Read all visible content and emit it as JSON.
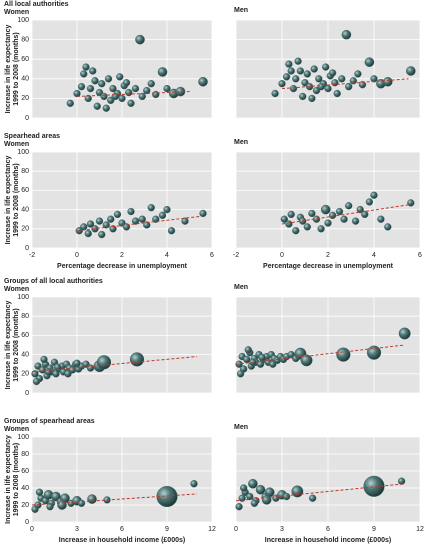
{
  "chart_data": [
    {
      "type": "scatter",
      "title": "All local authorities",
      "subtitle": "Women",
      "y_label": [
        "Increase in life expectancy",
        "1999 to 2008 (months)"
      ],
      "color": "#3f6666",
      "trend_color": "#c0392b",
      "x": [
        -0.3,
        0.0,
        0.2,
        0.3,
        0.4,
        0.5,
        0.6,
        0.8,
        0.9,
        1.0,
        1.1,
        1.2,
        1.4,
        1.5,
        1.6,
        1.8,
        1.9,
        2.0,
        2.1,
        2.3,
        2.4,
        2.6,
        2.8,
        2.9,
        3.1,
        3.3,
        3.5,
        3.8,
        4.0,
        4.3,
        4.6,
        5.6,
        0.7,
        1.3,
        1.7,
        2.2
      ],
      "y": [
        15,
        25,
        32,
        45,
        52,
        20,
        30,
        38,
        12,
        26,
        35,
        22,
        40,
        18,
        30,
        25,
        42,
        20,
        33,
        26,
        15,
        30,
        80,
        22,
        28,
        35,
        24,
        47,
        30,
        25,
        27,
        37,
        48,
        10,
        22,
        36
      ],
      "sizes": [
        3,
        3,
        3,
        3,
        3,
        3,
        3,
        3,
        3,
        3,
        3,
        3,
        3,
        3,
        3,
        3,
        3,
        3,
        3,
        3,
        3,
        3,
        4,
        3,
        3,
        3,
        3,
        4,
        3,
        4,
        4,
        4,
        3,
        3,
        3,
        3
      ],
      "trend": {
        "x": [
          0,
          5
        ],
        "y": [
          22,
          27
        ]
      },
      "xlim": [
        -2,
        6
      ],
      "xticks": [
        -2,
        0,
        2,
        4,
        6
      ],
      "ylim": [
        0,
        100
      ],
      "yticks": [
        0,
        20,
        40,
        60,
        80,
        100
      ],
      "xtick_labels": false,
      "ytick_labels": true,
      "grid": true
    },
    {
      "type": "scatter",
      "subtitle": "Men",
      "color": "#3f6666",
      "trend_color": "#c0392b",
      "x": [
        -0.3,
        0.0,
        0.2,
        0.3,
        0.4,
        0.5,
        0.6,
        0.8,
        0.9,
        1.0,
        1.1,
        1.2,
        1.4,
        1.5,
        1.6,
        1.8,
        1.9,
        2.0,
        2.1,
        2.3,
        2.4,
        2.6,
        2.8,
        2.9,
        3.1,
        3.3,
        3.5,
        3.8,
        4.0,
        4.3,
        4.6,
        5.6,
        0.7,
        1.3,
        1.7,
        2.2
      ],
      "y": [
        25,
        35,
        42,
        55,
        48,
        30,
        40,
        48,
        22,
        36,
        45,
        32,
        50,
        28,
        40,
        35,
        52,
        30,
        43,
        36,
        25,
        40,
        85,
        32,
        38,
        45,
        34,
        57,
        40,
        35,
        37,
        48,
        58,
        20,
        32,
        46
      ],
      "sizes": [
        3,
        3,
        3,
        3,
        3,
        3,
        3,
        3,
        3,
        3,
        3,
        3,
        3,
        3,
        3,
        3,
        3,
        3,
        3,
        3,
        3,
        3,
        4,
        3,
        3,
        3,
        3,
        4,
        3,
        4,
        4,
        4,
        3,
        3,
        3,
        3
      ],
      "trend": {
        "x": [
          0,
          5.5
        ],
        "y": [
          30,
          40
        ]
      },
      "xlim": [
        -2,
        6
      ],
      "xticks": [
        -2,
        0,
        2,
        4,
        6
      ],
      "ylim": [
        0,
        100
      ],
      "yticks": [
        0,
        20,
        40,
        60,
        80,
        100
      ],
      "xtick_labels": false,
      "ytick_labels": false,
      "grid": true
    },
    {
      "type": "scatter",
      "title": "Spearhead areas",
      "subtitle": "Women",
      "y_label": [
        "Increase in life expectancy",
        "1999 to 2008 (months)"
      ],
      "x_label": "Percentage decrease in unemployment",
      "color": "#3f6666",
      "trend_color": "#c0392b",
      "x": [
        0.1,
        0.3,
        0.5,
        0.6,
        0.8,
        1.0,
        1.1,
        1.3,
        1.5,
        1.6,
        1.8,
        2.0,
        2.2,
        2.4,
        2.6,
        2.9,
        3.1,
        3.3,
        3.5,
        3.8,
        4.0,
        4.2,
        4.8,
        5.6
      ],
      "y": [
        18,
        22,
        15,
        25,
        20,
        28,
        14,
        24,
        30,
        20,
        35,
        26,
        22,
        38,
        28,
        30,
        24,
        42,
        30,
        34,
        40,
        18,
        28,
        36
      ],
      "sizes": [
        3,
        3,
        3,
        3,
        3,
        3,
        3,
        3,
        3,
        3,
        3,
        3,
        3,
        3,
        3,
        3,
        3,
        3,
        3,
        3,
        3,
        3,
        3,
        3
      ],
      "trend": {
        "x": [
          0,
          5.5
        ],
        "y": [
          18,
          33
        ]
      },
      "xlim": [
        -2,
        6
      ],
      "xticks": [
        -2,
        0,
        2,
        4,
        6
      ],
      "ylim": [
        0,
        100
      ],
      "yticks": [
        0,
        20,
        40,
        60,
        80,
        100
      ],
      "xtick_labels": true,
      "ytick_labels": true,
      "grid": true
    },
    {
      "type": "scatter",
      "subtitle": "Men",
      "x_label": "Percentage decrease in unemployment",
      "color": "#3f6666",
      "trend_color": "#c0392b",
      "x": [
        0.1,
        0.3,
        0.4,
        0.6,
        0.8,
        0.9,
        1.1,
        1.3,
        1.5,
        1.7,
        1.9,
        2.0,
        2.2,
        2.5,
        2.7,
        2.9,
        3.2,
        3.4,
        3.6,
        3.8,
        4.0,
        4.3,
        4.6,
        5.6
      ],
      "y": [
        30,
        25,
        35,
        18,
        32,
        28,
        22,
        36,
        30,
        20,
        40,
        26,
        34,
        38,
        30,
        44,
        28,
        40,
        35,
        48,
        55,
        30,
        22,
        47
      ],
      "sizes": [
        3,
        3,
        3,
        3,
        3,
        3,
        3,
        3,
        3,
        3,
        4,
        3,
        3,
        3,
        3,
        3,
        3,
        3,
        3,
        3,
        3,
        3,
        3,
        3
      ],
      "trend": {
        "x": [
          0,
          5.5
        ],
        "y": [
          25,
          45
        ]
      },
      "xlim": [
        -2,
        6
      ],
      "xticks": [
        -2,
        0,
        2,
        4,
        6
      ],
      "ylim": [
        0,
        100
      ],
      "yticks": [
        0,
        20,
        40,
        60,
        80,
        100
      ],
      "xtick_labels": true,
      "ytick_labels": false,
      "grid": true
    },
    {
      "type": "scatter",
      "title": "Groups of all local authorities",
      "subtitle": "Women",
      "y_label": [
        "Increase in life expectancy",
        "1999 to 2008 (months)"
      ],
      "color": "#3f6666",
      "trend_color": "#c0392b",
      "x": [
        0.2,
        0.4,
        0.5,
        0.7,
        0.9,
        1.0,
        1.2,
        1.3,
        1.5,
        1.6,
        1.8,
        2.0,
        2.1,
        2.3,
        2.5,
        2.7,
        2.9,
        3.1,
        3.3,
        3.6,
        3.9,
        4.5,
        4.8,
        7.0,
        0.3,
        0.8,
        1.1,
        1.7,
        2.4,
        3.0
      ],
      "y": [
        20,
        28,
        15,
        24,
        30,
        18,
        26,
        22,
        32,
        20,
        25,
        28,
        22,
        30,
        26,
        24,
        30,
        25,
        28,
        30,
        26,
        28,
        32,
        35,
        12,
        35,
        22,
        27,
        20,
        31
      ],
      "sizes": [
        3,
        3,
        3,
        3,
        3,
        3,
        3,
        3,
        3,
        3,
        3,
        3,
        3,
        3,
        3,
        3,
        3,
        3,
        3,
        3,
        3,
        5,
        6,
        6,
        3,
        3,
        3,
        3,
        3,
        3
      ],
      "trend": {
        "x": [
          0,
          11
        ],
        "y": [
          22,
          38
        ]
      },
      "xlim": [
        0,
        12
      ],
      "xticks": [
        0,
        3,
        6,
        9,
        12
      ],
      "ylim": [
        0,
        100
      ],
      "yticks": [
        0,
        20,
        40,
        60,
        80,
        100
      ],
      "xtick_labels": false,
      "ytick_labels": true,
      "grid": true
    },
    {
      "type": "scatter",
      "subtitle": "Men",
      "color": "#3f6666",
      "trend_color": "#c0392b",
      "x": [
        0.2,
        0.4,
        0.5,
        0.7,
        0.9,
        1.0,
        1.2,
        1.3,
        1.5,
        1.6,
        1.8,
        2.0,
        2.1,
        2.3,
        2.5,
        2.7,
        2.9,
        3.1,
        3.3,
        3.6,
        3.9,
        4.2,
        4.6,
        7.0,
        9.0,
        11.0,
        0.3,
        0.8,
        1.1,
        1.7,
        2.4
      ],
      "y": [
        30,
        38,
        25,
        35,
        42,
        28,
        36,
        32,
        40,
        30,
        35,
        38,
        32,
        40,
        36,
        34,
        38,
        35,
        38,
        40,
        36,
        41,
        34,
        40,
        42,
        62,
        20,
        45,
        32,
        37,
        30
      ],
      "sizes": [
        3,
        3,
        3,
        3,
        3,
        3,
        3,
        3,
        3,
        3,
        3,
        3,
        3,
        3,
        3,
        3,
        3,
        3,
        3,
        3,
        3,
        5,
        5,
        6,
        6,
        5,
        3,
        3,
        3,
        3,
        3
      ],
      "trend": {
        "x": [
          0,
          11
        ],
        "y": [
          30,
          50
        ]
      },
      "xlim": [
        0,
        12
      ],
      "xticks": [
        0,
        3,
        6,
        9,
        12
      ],
      "ylim": [
        0,
        100
      ],
      "yticks": [
        0,
        20,
        40,
        60,
        80,
        100
      ],
      "xtick_labels": false,
      "ytick_labels": false,
      "grid": true
    },
    {
      "type": "scatter",
      "title": "Groups of spearhead areas",
      "subtitle": "Women",
      "y_label": [
        "Increase in life expectancy",
        "1999 to 2008 (months)"
      ],
      "x_label": "Increase in household income (£000s)",
      "color": "#3f6666",
      "trend_color": "#c0392b",
      "x": [
        0.2,
        0.4,
        0.6,
        0.9,
        1.1,
        1.3,
        1.6,
        1.9,
        2.2,
        2.6,
        3.0,
        3.3,
        4.0,
        5.0,
        9.0,
        10.8,
        0.5,
        1.2,
        2.0
      ],
      "y": [
        15,
        20,
        28,
        25,
        32,
        22,
        30,
        24,
        28,
        22,
        25,
        22,
        27,
        26,
        30,
        45,
        35,
        18,
        20
      ],
      "sizes": [
        3,
        3,
        3,
        3,
        4,
        3,
        4,
        3,
        4,
        3,
        4,
        3,
        4,
        3,
        9,
        3,
        3,
        3,
        4
      ],
      "trend": {
        "x": [
          0,
          11
        ],
        "y": [
          20,
          33
        ]
      },
      "xlim": [
        0,
        12
      ],
      "xticks": [
        0,
        3,
        6,
        9,
        12
      ],
      "ylim": [
        0,
        100
      ],
      "yticks": [
        0,
        20,
        40,
        60,
        80,
        100
      ],
      "xtick_labels": true,
      "ytick_labels": true,
      "grid": true
    },
    {
      "type": "scatter",
      "subtitle": "Men",
      "x_label": "Increase in household income (£000s)",
      "color": "#3f6666",
      "trend_color": "#c0392b",
      "x": [
        0.2,
        0.4,
        0.6,
        0.9,
        1.1,
        1.3,
        1.6,
        1.9,
        2.2,
        2.6,
        3.0,
        3.3,
        4.0,
        5.0,
        9.0,
        10.8,
        0.5,
        1.2,
        2.0
      ],
      "y": [
        18,
        28,
        35,
        30,
        45,
        25,
        38,
        30,
        35,
        28,
        32,
        30,
        36,
        28,
        42,
        48,
        40,
        22,
        26
      ],
      "sizes": [
        3,
        3,
        3,
        3,
        4,
        3,
        4,
        3,
        4,
        3,
        4,
        3,
        5,
        3,
        9,
        3,
        3,
        3,
        4
      ],
      "trend": {
        "x": [
          0,
          11
        ],
        "y": [
          25,
          45
        ]
      },
      "xlim": [
        0,
        12
      ],
      "xticks": [
        0,
        3,
        6,
        9,
        12
      ],
      "ylim": [
        0,
        100
      ],
      "yticks": [
        0,
        20,
        40,
        60,
        80,
        100
      ],
      "xtick_labels": true,
      "ytick_labels": false,
      "grid": true
    }
  ]
}
